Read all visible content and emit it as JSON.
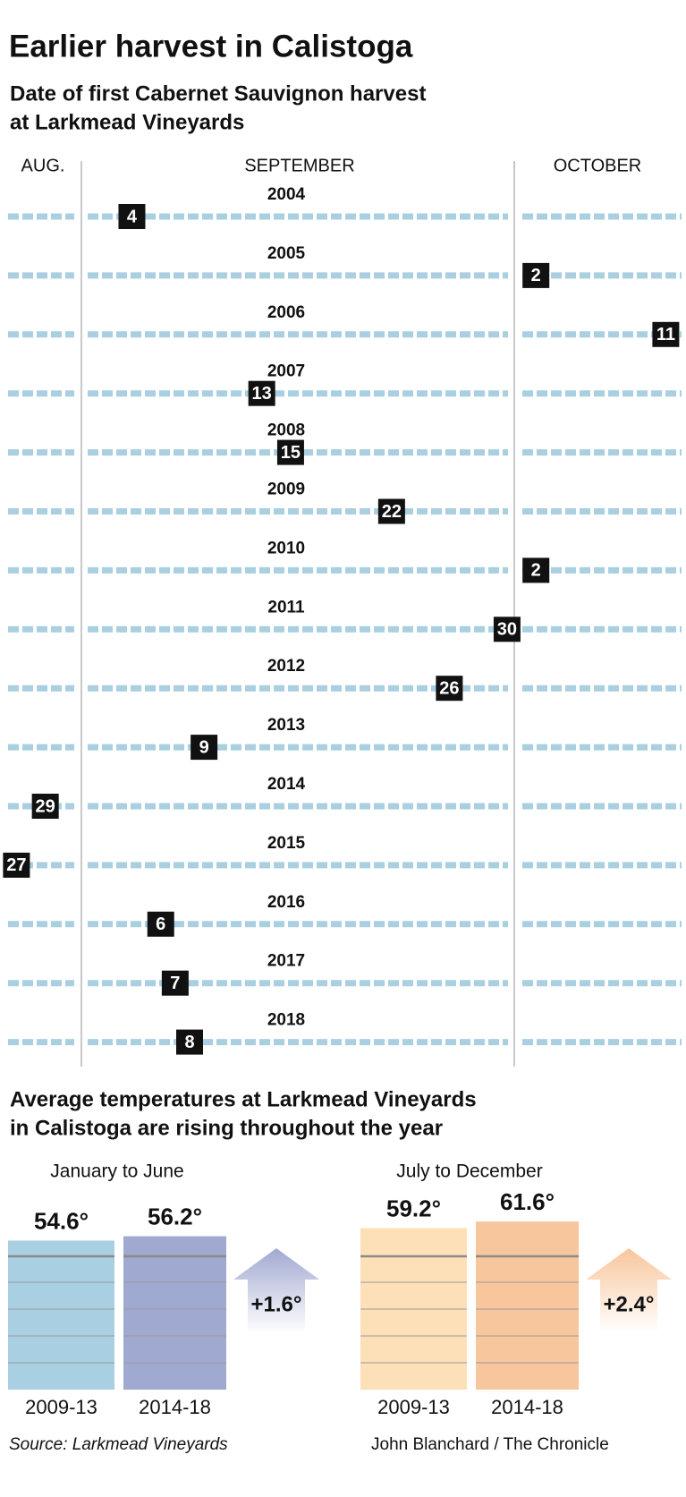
{
  "header": {
    "title": "Earlier harvest in Calistoga",
    "subtitle": [
      "Date of first Cabernet Sauvignon harvest",
      "at Larkmead Vineyards"
    ]
  },
  "chart_data": [
    {
      "type": "timeline",
      "months": [
        "AUG.",
        "SEPTEMBER",
        "OCTOBER"
      ],
      "categories": [
        "2004",
        "2005",
        "2006",
        "2007",
        "2008",
        "2009",
        "2010",
        "2011",
        "2012",
        "2013",
        "2014",
        "2015",
        "2016",
        "2017",
        "2018"
      ],
      "values": [
        4,
        2,
        11,
        13,
        15,
        22,
        2,
        30,
        26,
        9,
        29,
        27,
        6,
        7,
        8
      ],
      "value_months": [
        "SEPTEMBER",
        "OCTOBER",
        "OCTOBER",
        "SEPTEMBER",
        "SEPTEMBER",
        "SEPTEMBER",
        "OCTOBER",
        "SEPTEMBER",
        "SEPTEMBER",
        "SEPTEMBER",
        "AUG.",
        "AUG.",
        "SEPTEMBER",
        "SEPTEMBER",
        "SEPTEMBER"
      ],
      "color": "#111111",
      "line_color": "#a9cfe0"
    },
    {
      "type": "bar",
      "title": "January to June",
      "categories": [
        "2009-13",
        "2014-18"
      ],
      "values": [
        54.6,
        56.2
      ],
      "value_labels": [
        "54.6°",
        "56.2°"
      ],
      "colors": [
        "#a9cfe3",
        "#a0a9d0"
      ],
      "annotation": "+1.6°",
      "arrow_color": "#a0a9d0"
    },
    {
      "type": "bar",
      "title": "July to December",
      "categories": [
        "2009-13",
        "2014-18"
      ],
      "values": [
        59.2,
        61.6
      ],
      "value_labels": [
        "59.2°",
        "61.6°"
      ],
      "colors": [
        "#fde0b8",
        "#f8c69c"
      ],
      "annotation": "+2.4°",
      "arrow_color": "#f8c69c"
    }
  ],
  "section_title": [
    "Average temperatures at Larkmead Vineyards",
    "in Calistoga are rising throughout the year"
  ],
  "footer": {
    "source": "Source: Larkmead Vineyards",
    "credit": "John Blanchard / The Chronicle"
  }
}
